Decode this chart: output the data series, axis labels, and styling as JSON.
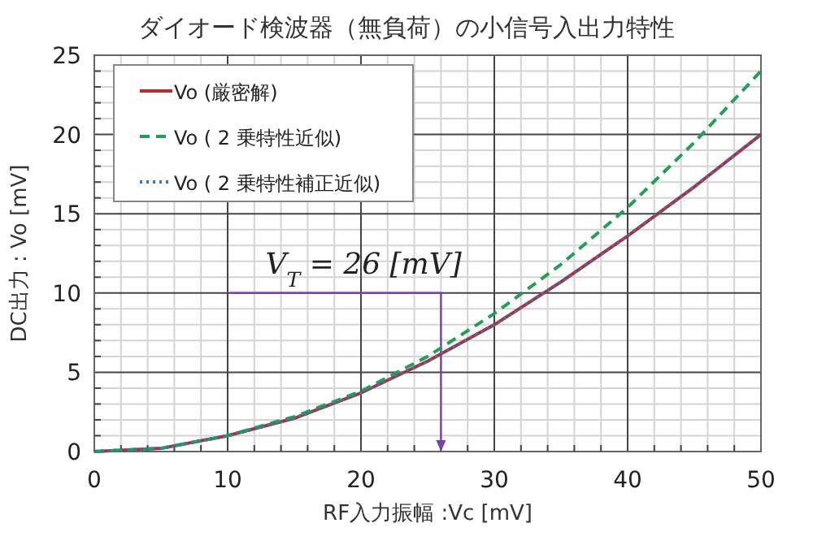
{
  "chart_data": {
    "type": "line",
    "title": "ダイオード検波器（無負荷）の小信号入出力特性",
    "xlabel": "RF入力振幅 :Vc [mV]",
    "ylabel": "DC出力 : Vo [mV]",
    "x": [
      0,
      5,
      10,
      15,
      20,
      25,
      30,
      35,
      40,
      45,
      50
    ],
    "series": [
      {
        "name": "Vo (厳密解)",
        "color": "#c0282d",
        "line_style": "solid",
        "values": [
          0,
          0.2,
          1,
          2.1,
          3.7,
          5.7,
          8,
          10.7,
          13.6,
          16.7,
          20
        ]
      },
      {
        "name": "Vo ( 2 乗特性近似)",
        "color": "#1fa055",
        "line_style": "dashed",
        "values": [
          0,
          0.2,
          1,
          2.2,
          3.8,
          6,
          8.7,
          11.8,
          15.4,
          19.5,
          24
        ]
      },
      {
        "name": "Vo ( 2 乗特性補正近似)",
        "color": "#2a7ab8",
        "line_style": "dotted",
        "values": [
          0,
          0.2,
          1,
          2.1,
          3.7,
          5.7,
          8,
          10.7,
          13.6,
          16.7,
          20
        ]
      }
    ],
    "xlim": [
      0,
      50
    ],
    "ylim": [
      0,
      25
    ],
    "xticks": [
      0,
      10,
      20,
      30,
      40,
      50
    ],
    "yticks": [
      0,
      5,
      10,
      15,
      20,
      25
    ],
    "grid": true,
    "legend": "top left",
    "ref_lines": [
      {
        "axis": "x",
        "value": 26,
        "label": "V$_{T}$ = 26 [mV]",
        "color": "#7a3fb0"
      }
    ]
  }
}
